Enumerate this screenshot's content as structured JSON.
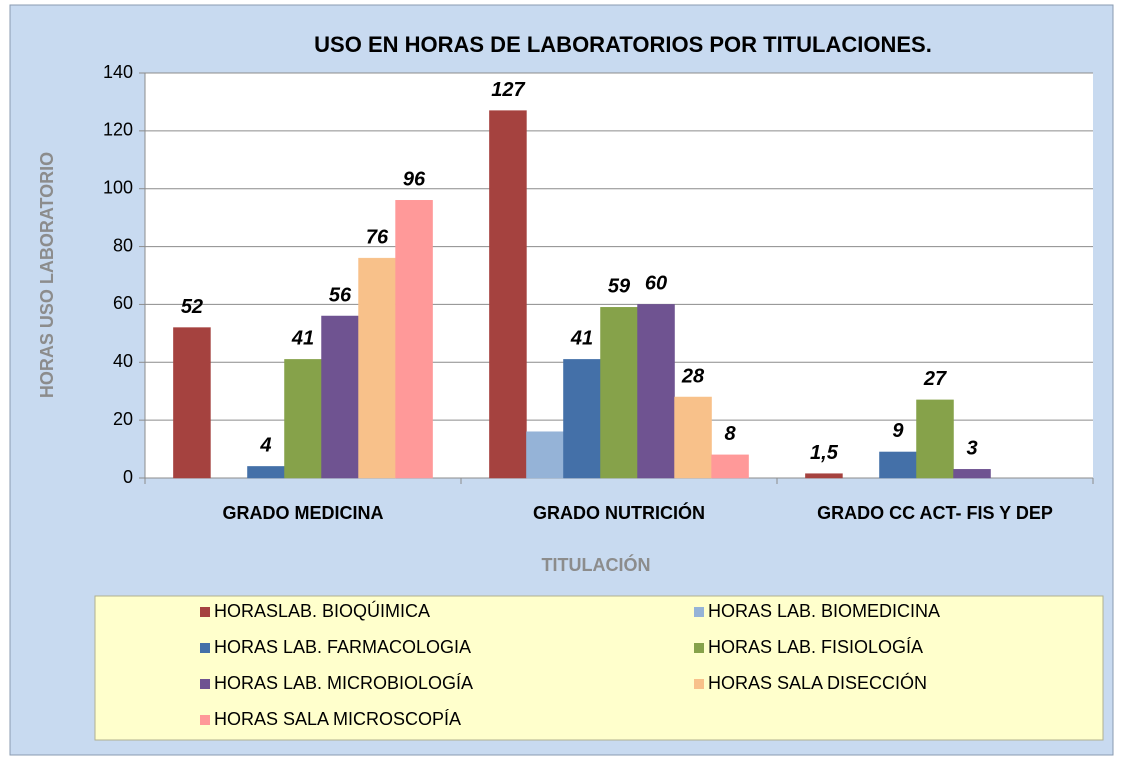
{
  "chart_data": {
    "type": "bar",
    "title": "USO EN HORAS DE LABORATORIOS POR TITULACIONES.",
    "x_label": "TITULACIÓN",
    "y_label": "HORAS USO LABORATORIO",
    "categories": [
      "GRADO MEDICINA",
      "GRADO NUTRICIÓN",
      "GRADO CC ACT- FIS Y DEP"
    ],
    "ylim": [
      0,
      140
    ],
    "yticks": [
      0,
      20,
      40,
      60,
      80,
      100,
      120,
      140
    ],
    "grid": true,
    "legend": "bottom",
    "series": [
      {
        "name": "HORASLAB. BIOQÚIMICA",
        "color": "#a5423f",
        "values": [
          52,
          127,
          1.5
        ],
        "value_labels": [
          "52",
          "127",
          "1,5"
        ]
      },
      {
        "name": "HORAS LAB. BIOMEDICINA",
        "color": "#95b3d7",
        "values": [
          null,
          16,
          null
        ],
        "value_labels": [
          null,
          null,
          null
        ]
      },
      {
        "name": "HORAS LAB. FARMACOLOGIA",
        "color": "#4470a8",
        "values": [
          4,
          41,
          9
        ],
        "value_labels": [
          "4",
          "41",
          "9"
        ]
      },
      {
        "name": "HORAS LAB. FISIOLOGÍA",
        "color": "#86a24a",
        "values": [
          41,
          59,
          27
        ],
        "value_labels": [
          "41",
          "59",
          "27"
        ]
      },
      {
        "name": "HORAS LAB. MICROBIOLOGÍA",
        "color": "#6f5391",
        "values": [
          56,
          60,
          3
        ],
        "value_labels": [
          "56",
          "60",
          "3"
        ]
      },
      {
        "name": "HORAS SALA DISECCIÓN",
        "color": "#f8c18a",
        "values": [
          76,
          28,
          null
        ],
        "value_labels": [
          "76",
          "28",
          null
        ]
      },
      {
        "name": "HORAS SALA MICROSCOPÍA",
        "color": "#ff9999",
        "values": [
          96,
          8,
          null
        ],
        "value_labels": [
          "96",
          "8",
          null
        ]
      }
    ]
  }
}
